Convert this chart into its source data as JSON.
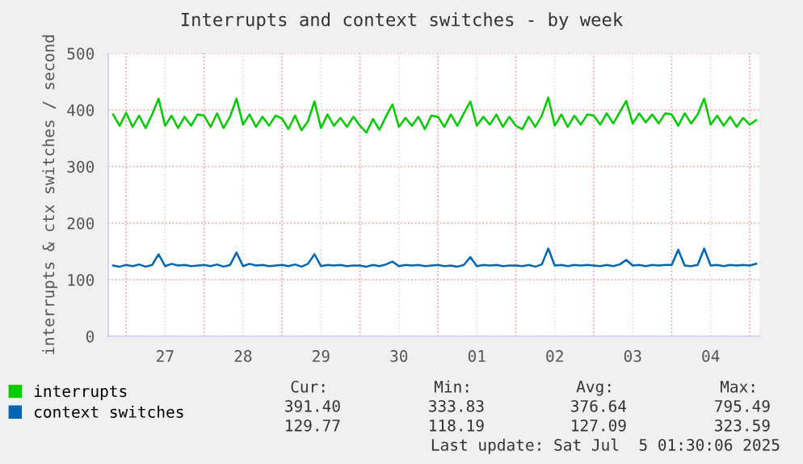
{
  "chart_data": {
    "type": "line",
    "title": "Interrupts and context switches - by week",
    "ylabel": "interrupts & ctx switches / second",
    "x": [
      "2025-06-26T20:00",
      "2025-06-26T22:00",
      "2025-06-27T00:00",
      "2025-06-27T02:00",
      "2025-06-27T04:00",
      "2025-06-27T06:00",
      "2025-06-27T08:00",
      "2025-06-27T10:00",
      "2025-06-27T12:00",
      "2025-06-27T14:00",
      "2025-06-27T16:00",
      "2025-06-27T18:00",
      "2025-06-27T20:00",
      "2025-06-27T22:00",
      "2025-06-28T00:00",
      "2025-06-28T02:00",
      "2025-06-28T04:00",
      "2025-06-28T06:00",
      "2025-06-28T08:00",
      "2025-06-28T10:00",
      "2025-06-28T12:00",
      "2025-06-28T14:00",
      "2025-06-28T16:00",
      "2025-06-28T18:00",
      "2025-06-28T20:00",
      "2025-06-28T22:00",
      "2025-06-29T00:00",
      "2025-06-29T02:00",
      "2025-06-29T04:00",
      "2025-06-29T06:00",
      "2025-06-29T08:00",
      "2025-06-29T10:00",
      "2025-06-29T12:00",
      "2025-06-29T14:00",
      "2025-06-29T16:00",
      "2025-06-29T18:00",
      "2025-06-29T20:00",
      "2025-06-29T22:00",
      "2025-06-30T00:00",
      "2025-06-30T02:00",
      "2025-06-30T04:00",
      "2025-06-30T06:00",
      "2025-06-30T08:00",
      "2025-06-30T10:00",
      "2025-06-30T12:00",
      "2025-06-30T14:00",
      "2025-06-30T16:00",
      "2025-06-30T18:00",
      "2025-06-30T20:00",
      "2025-06-30T22:00",
      "2025-07-01T00:00",
      "2025-07-01T02:00",
      "2025-07-01T04:00",
      "2025-07-01T06:00",
      "2025-07-01T08:00",
      "2025-07-01T10:00",
      "2025-07-01T12:00",
      "2025-07-01T14:00",
      "2025-07-01T16:00",
      "2025-07-01T18:00",
      "2025-07-01T20:00",
      "2025-07-01T22:00",
      "2025-07-02T00:00",
      "2025-07-02T02:00",
      "2025-07-02T04:00",
      "2025-07-02T06:00",
      "2025-07-02T08:00",
      "2025-07-02T10:00",
      "2025-07-02T12:00",
      "2025-07-02T14:00",
      "2025-07-02T16:00",
      "2025-07-02T18:00",
      "2025-07-02T20:00",
      "2025-07-02T22:00",
      "2025-07-03T00:00",
      "2025-07-03T02:00",
      "2025-07-03T04:00",
      "2025-07-03T06:00",
      "2025-07-03T08:00",
      "2025-07-03T10:00",
      "2025-07-03T12:00",
      "2025-07-03T14:00",
      "2025-07-03T16:00",
      "2025-07-03T18:00",
      "2025-07-03T20:00",
      "2025-07-03T22:00",
      "2025-07-04T00:00",
      "2025-07-04T02:00",
      "2025-07-04T04:00",
      "2025-07-04T06:00",
      "2025-07-04T08:00",
      "2025-07-04T10:00",
      "2025-07-04T12:00",
      "2025-07-04T14:00",
      "2025-07-04T16:00",
      "2025-07-04T18:00",
      "2025-07-04T20:00",
      "2025-07-04T22:00",
      "2025-07-05T00:00",
      "2025-07-05T02:00"
    ],
    "series": [
      {
        "name": "interrupts",
        "color": "#00cc00",
        "values": [
          392,
          372,
          395,
          370,
          390,
          368,
          392,
          420,
          372,
          390,
          368,
          388,
          372,
          392,
          390,
          370,
          394,
          368,
          388,
          420,
          374,
          392,
          370,
          388,
          372,
          390,
          385,
          366,
          390,
          364,
          380,
          415,
          368,
          392,
          372,
          386,
          370,
          388,
          372,
          360,
          384,
          365,
          388,
          410,
          370,
          386,
          372,
          388,
          366,
          390,
          388,
          370,
          392,
          372,
          394,
          415,
          372,
          388,
          374,
          392,
          370,
          388,
          372,
          366,
          388,
          370,
          390,
          422,
          372,
          392,
          370,
          390,
          374,
          392,
          390,
          374,
          394,
          376,
          396,
          416,
          376,
          394,
          378,
          392,
          376,
          394,
          392,
          372,
          394,
          376,
          392,
          420,
          374,
          390,
          372,
          388,
          370,
          386,
          374,
          382
        ]
      },
      {
        "name": "context switches",
        "color": "#0066b3",
        "values": [
          125,
          123,
          126,
          124,
          127,
          123,
          126,
          145,
          124,
          128,
          125,
          126,
          124,
          125,
          126,
          124,
          127,
          123,
          126,
          148,
          124,
          128,
          125,
          126,
          124,
          125,
          126,
          124,
          127,
          123,
          128,
          145,
          124,
          126,
          125,
          126,
          124,
          125,
          125,
          123,
          126,
          124,
          127,
          132,
          124,
          126,
          125,
          126,
          124,
          125,
          126,
          124,
          125,
          123,
          126,
          140,
          124,
          126,
          125,
          126,
          124,
          125,
          125,
          124,
          126,
          123,
          127,
          155,
          125,
          126,
          124,
          126,
          125,
          126,
          125,
          124,
          126,
          124,
          127,
          135,
          125,
          126,
          124,
          126,
          125,
          126,
          126,
          153,
          125,
          124,
          126,
          155,
          125,
          126,
          124,
          126,
          125,
          126,
          125,
          128
        ]
      }
    ],
    "xlim": [
      "2025-06-26T18:30",
      "2025-07-05T03:00"
    ],
    "xticks": [
      {
        "value": "2025-06-27T00:00",
        "label": null
      },
      {
        "value": "2025-06-27T12:00",
        "label": "27"
      },
      {
        "value": "2025-06-28T00:00",
        "label": null
      },
      {
        "value": "2025-06-28T12:00",
        "label": "28"
      },
      {
        "value": "2025-06-29T00:00",
        "label": null
      },
      {
        "value": "2025-06-29T12:00",
        "label": "29"
      },
      {
        "value": "2025-06-30T00:00",
        "label": null
      },
      {
        "value": "2025-06-30T12:00",
        "label": "30"
      },
      {
        "value": "2025-07-01T00:00",
        "label": null
      },
      {
        "value": "2025-07-01T12:00",
        "label": "01"
      },
      {
        "value": "2025-07-02T00:00",
        "label": null
      },
      {
        "value": "2025-07-02T12:00",
        "label": "02"
      },
      {
        "value": "2025-07-03T00:00",
        "label": null
      },
      {
        "value": "2025-07-03T12:00",
        "label": "03"
      },
      {
        "value": "2025-07-04T00:00",
        "label": null
      },
      {
        "value": "2025-07-04T12:00",
        "label": "04"
      },
      {
        "value": "2025-07-05T00:00",
        "label": null
      }
    ],
    "ylim": [
      0,
      500
    ],
    "yticks": [
      0,
      100,
      200,
      300,
      400,
      500
    ],
    "grid": true,
    "legend": "bottom left",
    "marker": "none",
    "line_style": "solid",
    "annotations": [
      "Cur:",
      "Min:",
      "Avg:",
      "Max:",
      "391.40",
      "333.83",
      "376.64",
      "795.49",
      "129.77",
      "118.19",
      "127.09",
      "323.59",
      "Last update: Sat Jul  5 01:30:06 2025"
    ]
  }
}
